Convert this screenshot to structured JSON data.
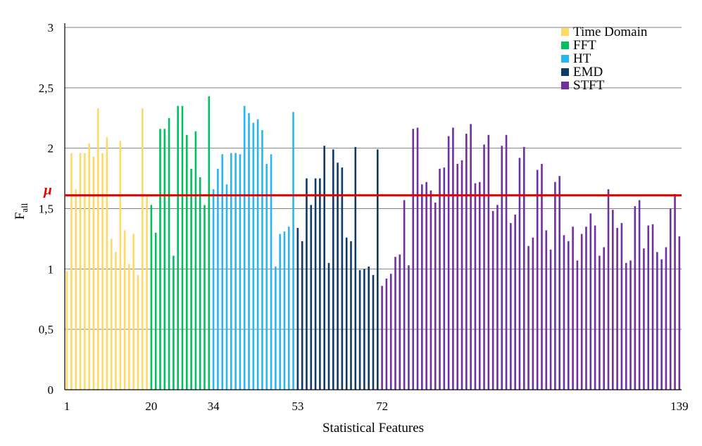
{
  "chart_data": {
    "type": "bar",
    "title": "",
    "xlabel": "Statistical Features",
    "ylabel": "F",
    "ylabel_subscript": "all",
    "ylim": [
      0,
      3
    ],
    "yticks": [
      0,
      0.5,
      1,
      1.5,
      2,
      2.5,
      3
    ],
    "ytick_labels": [
      "0",
      "0,5",
      "1",
      "1,5",
      "2",
      "2,5",
      "3"
    ],
    "xtick_labels": [
      "1",
      "20",
      "34",
      "53",
      "72",
      "139"
    ],
    "mean_line": {
      "label": "μ",
      "value": 1.61,
      "color": "#e60000"
    },
    "series": [
      {
        "name": "Time Domain",
        "color": "#ffd966",
        "start": 1,
        "end": 19,
        "values": [
          0.98,
          1.96,
          1.66,
          1.96,
          1.96,
          2.04,
          1.93,
          2.33,
          1.96,
          2.09,
          1.25,
          1.14,
          2.06,
          1.32,
          1.04,
          1.29,
          0.95,
          2.33,
          1.61
        ]
      },
      {
        "name": "FFT",
        "color": "#00c060",
        "start": 20,
        "end": 33,
        "values": [
          1.53,
          1.3,
          2.16,
          2.16,
          2.25,
          1.11,
          2.35,
          2.35,
          2.11,
          1.83,
          2.14,
          1.76,
          1.53,
          2.43
        ]
      },
      {
        "name": "HT",
        "color": "#29b6f0",
        "start": 34,
        "end": 52,
        "values": [
          1.66,
          1.83,
          1.95,
          1.7,
          1.96,
          1.96,
          1.95,
          2.35,
          2.29,
          2.21,
          2.24,
          2.15,
          1.87,
          1.95,
          1.02,
          1.29,
          1.31,
          1.35,
          2.3
        ]
      },
      {
        "name": "EMD",
        "color": "#0d3b66",
        "start": 53,
        "end": 71,
        "values": [
          1.34,
          1.23,
          1.75,
          1.53,
          1.75,
          1.75,
          2.02,
          1.05,
          1.99,
          1.88,
          1.84,
          1.26,
          1.23,
          2.01,
          0.99,
          1.0,
          1.02,
          0.95,
          1.99
        ]
      },
      {
        "name": "STFT",
        "color": "#7030a0",
        "start": 72,
        "end": 139,
        "values": [
          0.86,
          0.92,
          0.96,
          1.1,
          1.12,
          1.57,
          1.03,
          2.16,
          2.17,
          1.7,
          1.72,
          1.65,
          1.55,
          1.83,
          1.84,
          2.1,
          2.17,
          1.87,
          1.9,
          2.12,
          2.2,
          1.71,
          1.72,
          2.03,
          2.11,
          1.48,
          1.53,
          2.02,
          2.11,
          1.38,
          1.45,
          1.92,
          2.01,
          1.19,
          1.26,
          1.82,
          1.87,
          1.32,
          1.16,
          1.72,
          1.77,
          1.28,
          1.23,
          1.35,
          1.07,
          1.29,
          1.35,
          1.46,
          1.36,
          1.11,
          1.18,
          1.66,
          1.49,
          1.34,
          1.38,
          1.05,
          1.07,
          1.52,
          1.57,
          1.17,
          1.36,
          1.37,
          1.14,
          1.08,
          1.18,
          1.5,
          1.62,
          1.27
        ]
      }
    ],
    "legend": {
      "position": "top-right",
      "entries": [
        "Time Domain",
        "FFT",
        "HT",
        "EMD",
        "STFT"
      ]
    },
    "grid": true
  }
}
